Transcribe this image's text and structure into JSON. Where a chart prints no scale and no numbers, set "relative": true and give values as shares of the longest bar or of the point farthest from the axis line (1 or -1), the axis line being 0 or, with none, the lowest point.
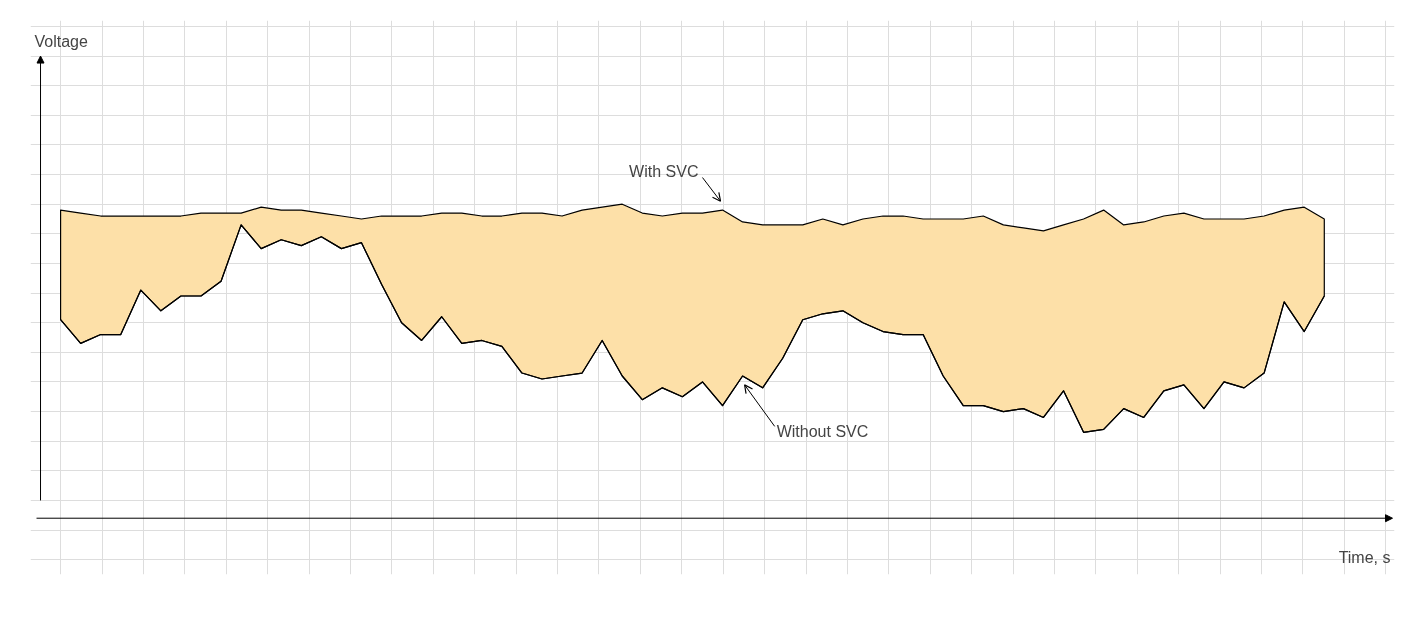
{
  "chart_data": {
    "type": "line",
    "relative": true,
    "xlabel": "Time, s",
    "annotations": [
      "Voltage"
    ],
    "grid": true,
    "categories": [
      null,
      null,
      null,
      null,
      null,
      null,
      null,
      null,
      null,
      null,
      null,
      null,
      null,
      null,
      null,
      null,
      null,
      null,
      null,
      null,
      null,
      null,
      null,
      null,
      null,
      null,
      null,
      null,
      null,
      null,
      null,
      null,
      null,
      null,
      null,
      null,
      null,
      null,
      null,
      null,
      null,
      null,
      null,
      null,
      null,
      null,
      null,
      null,
      null,
      null,
      null,
      null,
      null,
      null,
      null,
      null,
      null,
      null,
      null,
      null,
      null,
      null,
      null,
      null
    ],
    "series": [
      {
        "name": "Without SVC",
        "type": "line",
        "color": "#000000",
        "values": [
          0.61,
          0.53,
          0.56,
          0.56,
          0.71,
          0.64,
          0.69,
          0.69,
          0.74,
          0.93,
          0.85,
          0.88,
          0.86,
          0.89,
          0.85,
          0.87,
          0.73,
          0.6,
          0.54,
          0.62,
          0.53,
          0.54,
          0.52,
          0.43,
          0.41,
          0.42,
          0.43,
          0.54,
          0.42,
          0.34,
          0.38,
          0.35,
          0.4,
          0.32,
          0.42,
          0.38,
          0.48,
          0.61,
          0.63,
          0.64,
          0.6,
          0.57,
          0.56,
          0.56,
          0.42,
          0.32,
          0.32,
          0.3,
          0.31,
          0.28,
          0.37,
          0.23,
          0.24,
          0.31,
          0.28,
          0.37,
          0.39,
          0.31,
          0.4,
          0.38,
          0.43,
          0.67,
          0.57,
          0.69
        ]
      },
      {
        "name": "With SVC",
        "type": "area",
        "color": "#fde0a8",
        "values": [
          0.98,
          0.97,
          0.96,
          0.96,
          0.96,
          0.96,
          0.96,
          0.97,
          0.97,
          0.97,
          0.99,
          0.98,
          0.98,
          0.97,
          0.96,
          0.95,
          0.96,
          0.96,
          0.96,
          0.97,
          0.97,
          0.96,
          0.96,
          0.97,
          0.97,
          0.96,
          0.98,
          0.99,
          1.0,
          0.97,
          0.96,
          0.97,
          0.97,
          0.98,
          0.94,
          0.93,
          0.93,
          0.93,
          0.95,
          0.93,
          0.95,
          0.96,
          0.96,
          0.95,
          0.95,
          0.95,
          0.96,
          0.93,
          0.92,
          0.91,
          0.93,
          0.95,
          0.98,
          0.93,
          0.94,
          0.96,
          0.97,
          0.95,
          0.95,
          0.95,
          0.96,
          0.98,
          0.99,
          0.95
        ]
      }
    ]
  }
}
